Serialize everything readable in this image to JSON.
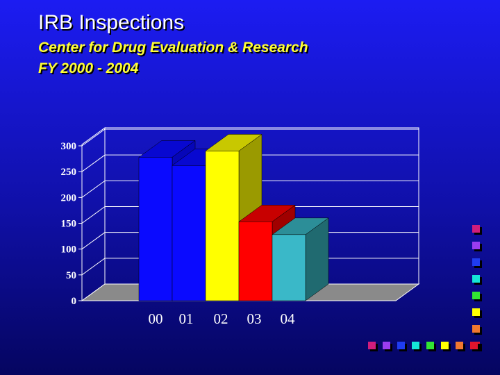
{
  "header": {
    "title": "IRB Inspections",
    "subtitle_line1": "Center for Drug Evaluation & Research",
    "subtitle_line2": "FY 2000 - 2004"
  },
  "chart_data": {
    "type": "bar",
    "title": "",
    "xlabel": "",
    "ylabel": "",
    "categories": [
      "00",
      "01",
      "02",
      "03",
      "04"
    ],
    "values": [
      278,
      262,
      290,
      153,
      128
    ],
    "ylim": [
      0,
      300
    ],
    "yticks": [
      "0",
      "50",
      "100",
      "150",
      "200",
      "250",
      "300"
    ],
    "style": "3d",
    "grid": true,
    "legend": "none",
    "colors": [
      {
        "front": "#0a0aff",
        "side": "#0606b8",
        "top": "#0808d0"
      },
      {
        "front": "#0a0aff",
        "side": "#0606b8",
        "top": "#0808d0"
      },
      {
        "front": "#ffff00",
        "side": "#9a9a00",
        "top": "#c8c800"
      },
      {
        "front": "#ff0000",
        "side": "#a00000",
        "top": "#c80000"
      },
      {
        "front": "#3ab8c8",
        "side": "#206a70",
        "top": "#2c8e98"
      }
    ],
    "floor_color": "#8a8a8a"
  },
  "decor": {
    "square_colors": [
      "#d01d7c",
      "#9a3cf0",
      "#1f3cf0",
      "#15e6d8",
      "#32e632",
      "#ffff00",
      "#f07830",
      "#e0142c"
    ]
  }
}
